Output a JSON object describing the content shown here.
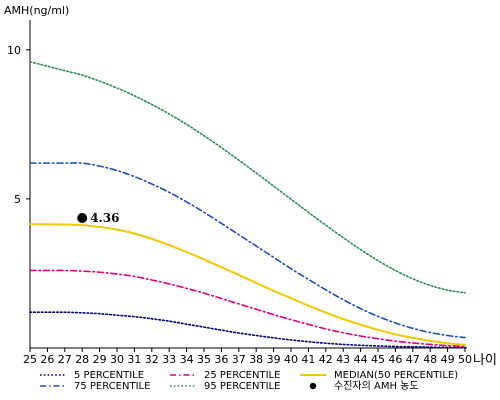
{
  "chart_data": {
    "type": "line",
    "ylabel": "AMH(ng/ml)",
    "xlabel": "나이",
    "xlim": [
      25,
      50
    ],
    "ylim": [
      0,
      11
    ],
    "x_ticks": [
      "25",
      "26",
      "27",
      "28",
      "29",
      "30",
      "31",
      "32",
      "33",
      "34",
      "35",
      "36",
      "37",
      "38",
      "39",
      "40",
      "41",
      "42",
      "43",
      "44",
      "45",
      "46",
      "47",
      "48",
      "49",
      "50"
    ],
    "y_ticks": [
      "5",
      "10"
    ],
    "y_tick_values": [
      5,
      10
    ],
    "grid": false,
    "legend_position": "bottom",
    "x": [
      25,
      26,
      27,
      28,
      29,
      30,
      31,
      32,
      33,
      34,
      35,
      36,
      37,
      38,
      39,
      40,
      41,
      42,
      43,
      44,
      45,
      46,
      47,
      48,
      49,
      50
    ],
    "series": [
      {
        "name": "5 PERCENTILE",
        "color": "#000080",
        "dash": "dotted",
        "values": [
          1.2,
          1.2,
          1.2,
          1.18,
          1.15,
          1.1,
          1.05,
          0.98,
          0.9,
          0.8,
          0.7,
          0.6,
          0.5,
          0.42,
          0.34,
          0.27,
          0.21,
          0.16,
          0.12,
          0.09,
          0.07,
          0.05,
          0.04,
          0.03,
          0.02,
          0.02
        ]
      },
      {
        "name": "25 PERCENTILE",
        "color": "#e0007a",
        "dash": "dashdot",
        "values": [
          2.6,
          2.6,
          2.6,
          2.58,
          2.54,
          2.48,
          2.4,
          2.28,
          2.15,
          2.0,
          1.84,
          1.66,
          1.48,
          1.3,
          1.12,
          0.95,
          0.79,
          0.64,
          0.51,
          0.4,
          0.31,
          0.23,
          0.17,
          0.12,
          0.08,
          0.05
        ]
      },
      {
        "name": "MEDIAN(50 PERCENTILE)",
        "color": "#f2c800",
        "dash": "solid",
        "values": [
          4.15,
          4.15,
          4.14,
          4.12,
          4.06,
          3.97,
          3.84,
          3.66,
          3.45,
          3.22,
          2.97,
          2.71,
          2.45,
          2.18,
          1.92,
          1.67,
          1.42,
          1.19,
          0.97,
          0.78,
          0.61,
          0.46,
          0.34,
          0.24,
          0.16,
          0.1
        ]
      },
      {
        "name": "75 PERCENTILE",
        "color": "#1f4fbf",
        "dash": "dashdot",
        "values": [
          6.2,
          6.2,
          6.2,
          6.2,
          6.1,
          5.95,
          5.75,
          5.5,
          5.22,
          4.9,
          4.55,
          4.18,
          3.8,
          3.42,
          3.04,
          2.66,
          2.3,
          1.95,
          1.62,
          1.32,
          1.06,
          0.84,
          0.66,
          0.52,
          0.42,
          0.35
        ]
      },
      {
        "name": "95 PERCENTILE",
        "color": "#2e8b57",
        "dash": "dotted",
        "values": [
          9.6,
          9.45,
          9.3,
          9.15,
          8.95,
          8.72,
          8.46,
          8.17,
          7.85,
          7.5,
          7.12,
          6.72,
          6.3,
          5.87,
          5.43,
          4.99,
          4.55,
          4.12,
          3.7,
          3.3,
          2.93,
          2.6,
          2.32,
          2.1,
          1.94,
          1.85
        ]
      }
    ],
    "legend_order": [
      0,
      1,
      2,
      3,
      4
    ],
    "patient": {
      "legend_label": "수진자의 AMH 농도",
      "x": 28,
      "y": 4.36,
      "label": "4.36",
      "color": "#000000"
    }
  }
}
